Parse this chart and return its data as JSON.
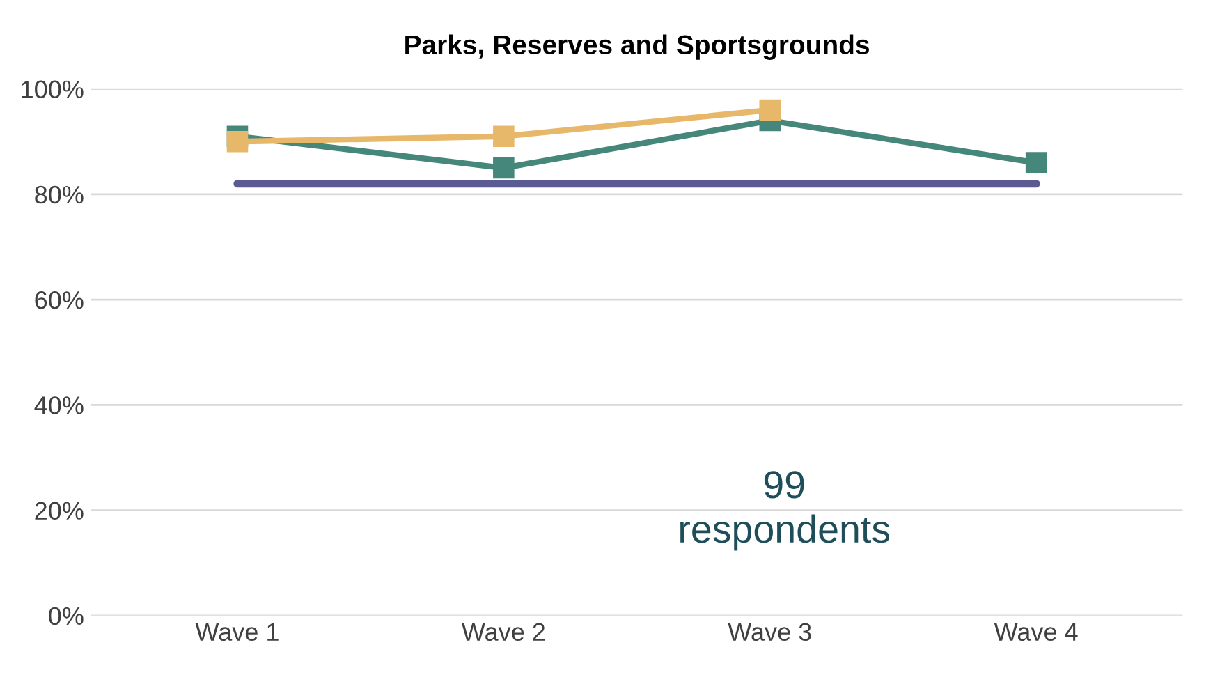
{
  "chart_data": {
    "type": "line",
    "title": "Parks, Reserves and Sportsgrounds",
    "categories": [
      "Wave 1",
      "Wave 2",
      "Wave 3",
      "Wave 4"
    ],
    "series": [
      {
        "color": "#5b5b93",
        "values": [
          82,
          82,
          82,
          82
        ],
        "marker": "none"
      },
      {
        "color": "#45877a",
        "values": [
          91,
          85,
          94,
          86
        ],
        "marker": "square"
      },
      {
        "color": "#e8b86a",
        "values": [
          90,
          91,
          96,
          null
        ],
        "marker": "square"
      }
    ],
    "ylim": [
      0,
      100
    ],
    "yticks": [
      {
        "value": 0,
        "label": "0%"
      },
      {
        "value": 20,
        "label": "20%"
      },
      {
        "value": 40,
        "label": "40%"
      },
      {
        "value": 60,
        "label": "60%"
      },
      {
        "value": 80,
        "label": "80%"
      },
      {
        "value": 100,
        "label": "100%"
      }
    ],
    "grid": "y",
    "annotations": [
      "99\nrespondents"
    ]
  }
}
